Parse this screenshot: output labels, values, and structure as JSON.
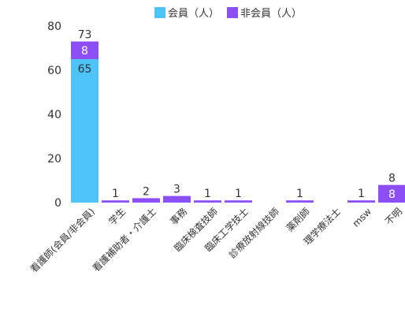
{
  "chart_data": {
    "type": "bar",
    "stacked": true,
    "categories": [
      "看護師(会員/非会員)",
      "学生",
      "看護補助者・介護士",
      "事務",
      "臨床検査技師",
      "臨床工学技士",
      "診療放射線技師",
      "薬剤師",
      "理学療法士",
      "msw",
      "不明"
    ],
    "series": [
      {
        "name": "会員（人）",
        "color": "#4DC3F7",
        "values": [
          65,
          0,
          0,
          0,
          0,
          0,
          0,
          0,
          0,
          0,
          0
        ]
      },
      {
        "name": "非会員（人）",
        "color": "#8C4FF5",
        "values": [
          8,
          1,
          2,
          3,
          1,
          1,
          0,
          1,
          0,
          1,
          8
        ]
      }
    ],
    "totals": [
      "73",
      "1",
      "2",
      "3",
      "1",
      "1",
      "",
      "1",
      "",
      "1",
      "8"
    ],
    "segment_labels": {
      "member": [
        "65",
        "",
        "",
        "",
        "",
        "",
        "",
        "",
        "",
        "",
        ""
      ],
      "nonmember": [
        "8",
        "",
        "",
        "",
        "",
        "",
        "",
        "",
        "",
        "",
        "8"
      ]
    },
    "yticks": [
      "0",
      "20",
      "40",
      "60",
      "80"
    ],
    "ylim": [
      0,
      80
    ],
    "legend_position": "top",
    "grid": false
  }
}
